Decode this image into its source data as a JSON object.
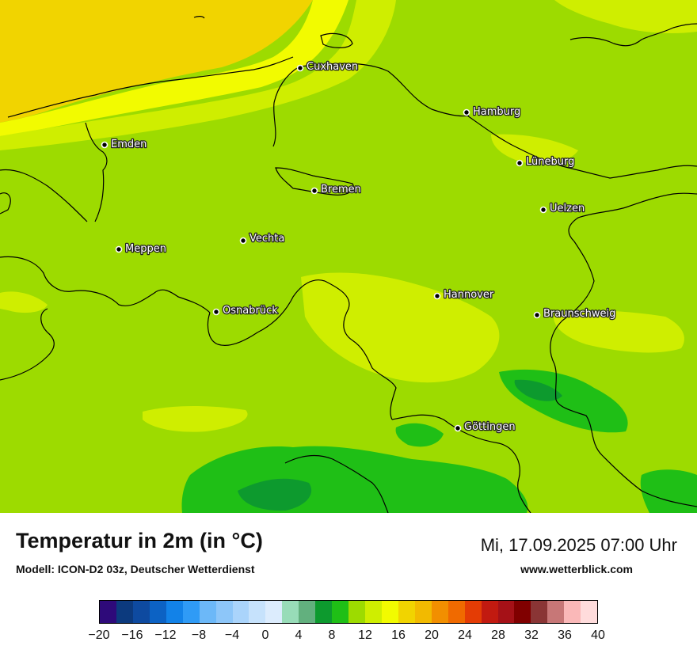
{
  "map": {
    "title": "Temperatur in 2m (in °C)",
    "model": "Modell: ICON-D2 03z, Deutscher Wetterdienst",
    "datetime": "Mi, 17.09.2025 07:00 Uhr",
    "website": "www.wetterblick.com",
    "cities": [
      "Cuxhaven",
      "Hamburg",
      "Emden",
      "Lüneburg",
      "Bremen",
      "Uelzen",
      "Vechta",
      "Meppen",
      "Hannover",
      "Osnabrück",
      "Braunschweig",
      "Göttingen"
    ],
    "colorbar": {
      "ticks": [
        "−20",
        "−16",
        "−12",
        "−8",
        "−4",
        "0",
        "4",
        "8",
        "12",
        "16",
        "20",
        "24",
        "28",
        "32",
        "36",
        "40"
      ],
      "min": -20,
      "max": 40,
      "step": 2,
      "colors": [
        "#2e0a7a",
        "#0c3a7e",
        "#0e4aa0",
        "#0c62c4",
        "#1282e8",
        "#2f9bf6",
        "#6cb8f8",
        "#8dc6f9",
        "#aad4fb",
        "#c6e2fc",
        "#dcecfd",
        "#98dcb8",
        "#62b07e",
        "#0d9a2e",
        "#1fbf16",
        "#9ddb00",
        "#cfee00",
        "#f2fb00",
        "#f1d400",
        "#f2ba00",
        "#f28f00",
        "#f06a00",
        "#e43c05",
        "#c21a10",
        "#a51117",
        "#800000",
        "#8a3535",
        "#c77777",
        "#fab8b8",
        "#ffdcdc"
      ]
    }
  }
}
